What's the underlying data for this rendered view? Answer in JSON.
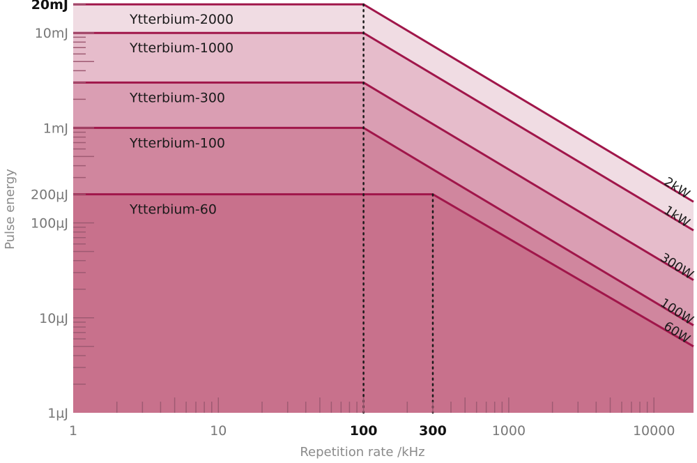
{
  "chart_data": {
    "type": "area",
    "title": "",
    "xlabel": "Repetition rate /kHz",
    "ylabel": "Pulse energy",
    "x_scale": "log",
    "y_scale": "log",
    "xlim": [
      1,
      12000
    ],
    "ylim": [
      1,
      20000
    ],
    "x_tick_labels": [
      {
        "value": 1,
        "label": "1",
        "bold": false
      },
      {
        "value": 10,
        "label": "10",
        "bold": false
      },
      {
        "value": 100,
        "label": "100",
        "bold": true
      },
      {
        "value": 300,
        "label": "300",
        "bold": true
      },
      {
        "value": 1000,
        "label": "1000",
        "bold": false
      },
      {
        "value": 10000,
        "label": "10000",
        "bold": false
      }
    ],
    "y_tick_labels": [
      {
        "value": 1,
        "label": "1µJ",
        "bold": false
      },
      {
        "value": 10,
        "label": "10µJ",
        "bold": false
      },
      {
        "value": 100,
        "label": "100µJ",
        "bold": false
      },
      {
        "value": 200,
        "label": "200µJ",
        "bold": false
      },
      {
        "value": 1000,
        "label": "1mJ",
        "bold": false
      },
      {
        "value": 10000,
        "label": "10mJ",
        "bold": false
      },
      {
        "value": 20000,
        "label": "20mJ",
        "bold": true
      }
    ],
    "series": [
      {
        "name": "Ytterbium-2000",
        "power_label": "2kW",
        "max_energy": 20000,
        "knee_rate": 100,
        "color": "#f0dce3"
      },
      {
        "name": "Ytterbium-1000",
        "power_label": "1kW",
        "max_energy": 10000,
        "knee_rate": 100,
        "color": "#e6bccb"
      },
      {
        "name": "Ytterbium-300",
        "power_label": "300W",
        "max_energy": 3000,
        "knee_rate": 100,
        "color": "#da9eb3"
      },
      {
        "name": "Ytterbium-100",
        "power_label": "100W",
        "max_energy": 1000,
        "knee_rate": 100,
        "color": "#d0869e"
      },
      {
        "name": "Ytterbium-60",
        "power_label": "60W",
        "max_energy": 200,
        "knee_rate": 300,
        "color": "#c8718c"
      }
    ],
    "line_color": "#a0164a",
    "knee_lines": [
      100,
      300
    ],
    "legend": "none",
    "grid": false
  }
}
